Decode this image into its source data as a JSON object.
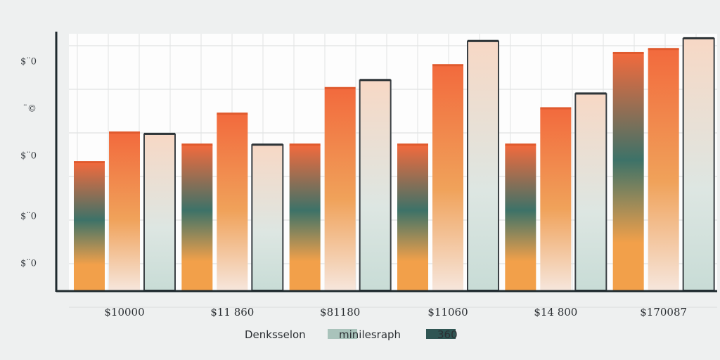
{
  "chart_data": {
    "type": "bar",
    "title": "",
    "xlabel": "",
    "ylabel": "",
    "ylim": [
      0,
      200
    ],
    "yticks": [
      {
        "value": 20,
        "label": "$¨0"
      },
      {
        "value": 55,
        "label": "$¨0"
      },
      {
        "value": 100,
        "label": "$¨0"
      },
      {
        "value": 135,
        "label": "¨©"
      },
      {
        "value": 170,
        "label": "$¨0"
      }
    ],
    "categories": [
      "$10000",
      "$11 860",
      "$81180",
      "$11060",
      "$14 800",
      "$170087"
    ],
    "series": [
      {
        "name": "Denksselon",
        "values": [
          95,
          108,
          108,
          108,
          108,
          176
        ],
        "colors": [
          "#f26a3d",
          "#3d7268",
          "#f2a04a"
        ]
      },
      {
        "name": "minilesraph",
        "values": [
          117,
          131,
          150,
          167,
          135,
          179
        ],
        "colors": [
          "#f26a3d",
          "#f0a25a",
          "#f6e6dc"
        ]
      },
      {
        "name": "360",
        "values": [
          116,
          108,
          156,
          185,
          146,
          187
        ],
        "colors": [
          "#f7d8c5",
          "#dde6e2",
          "#c8dcd6"
        ]
      }
    ],
    "legend": {
      "position": "bottom",
      "swatch_colors": [
        "#eef0f0",
        "#a9c3bb",
        "#2f5553"
      ]
    },
    "grid": true,
    "accent_color": "#e05a2e",
    "axis_color": "#1f2a2e"
  }
}
